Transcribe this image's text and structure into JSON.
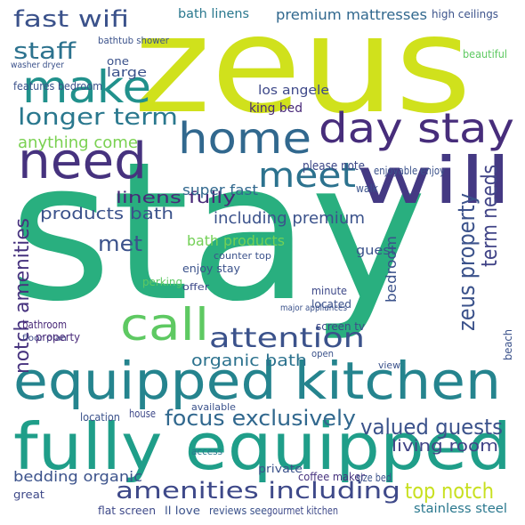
{
  "words": [
    "zeus",
    "stay",
    "fully equipped",
    "equipped kitchen",
    "home",
    "day stay",
    "will",
    "need",
    "make",
    "meet",
    "call",
    "attention",
    "longer term",
    "fast wifi",
    "staff",
    "amenities including",
    "top notch",
    "valued guests",
    "focus exclusively",
    "living room",
    "notch amenities",
    "zeus property",
    "term needs",
    "products bath",
    "linens fully",
    "including premium",
    "bath products",
    "met",
    "organic bath",
    "premium mattresses",
    "bath linens",
    "super fast",
    "anything come",
    "los angele",
    "king bed",
    "bedding organic",
    "stainless steel",
    "coffee maker",
    "private",
    "great",
    "enjoy stay",
    "perking",
    "bathroom",
    "floor plan",
    "located",
    "minute",
    "guest",
    "please note",
    "enjoyable enjoy",
    "high ceilings",
    "beautiful",
    "walk",
    "flat screen",
    "ll love",
    "reviews see",
    "gourmet kitchen",
    "size bed",
    "house",
    "location",
    "screen tv",
    "view",
    "open",
    "available",
    "offer",
    "access",
    "features bedroom",
    "large",
    "one",
    "bathtub shower",
    "washer dryer",
    "beach",
    "major appliances",
    "counter top",
    "bedroom",
    "property"
  ]
}
